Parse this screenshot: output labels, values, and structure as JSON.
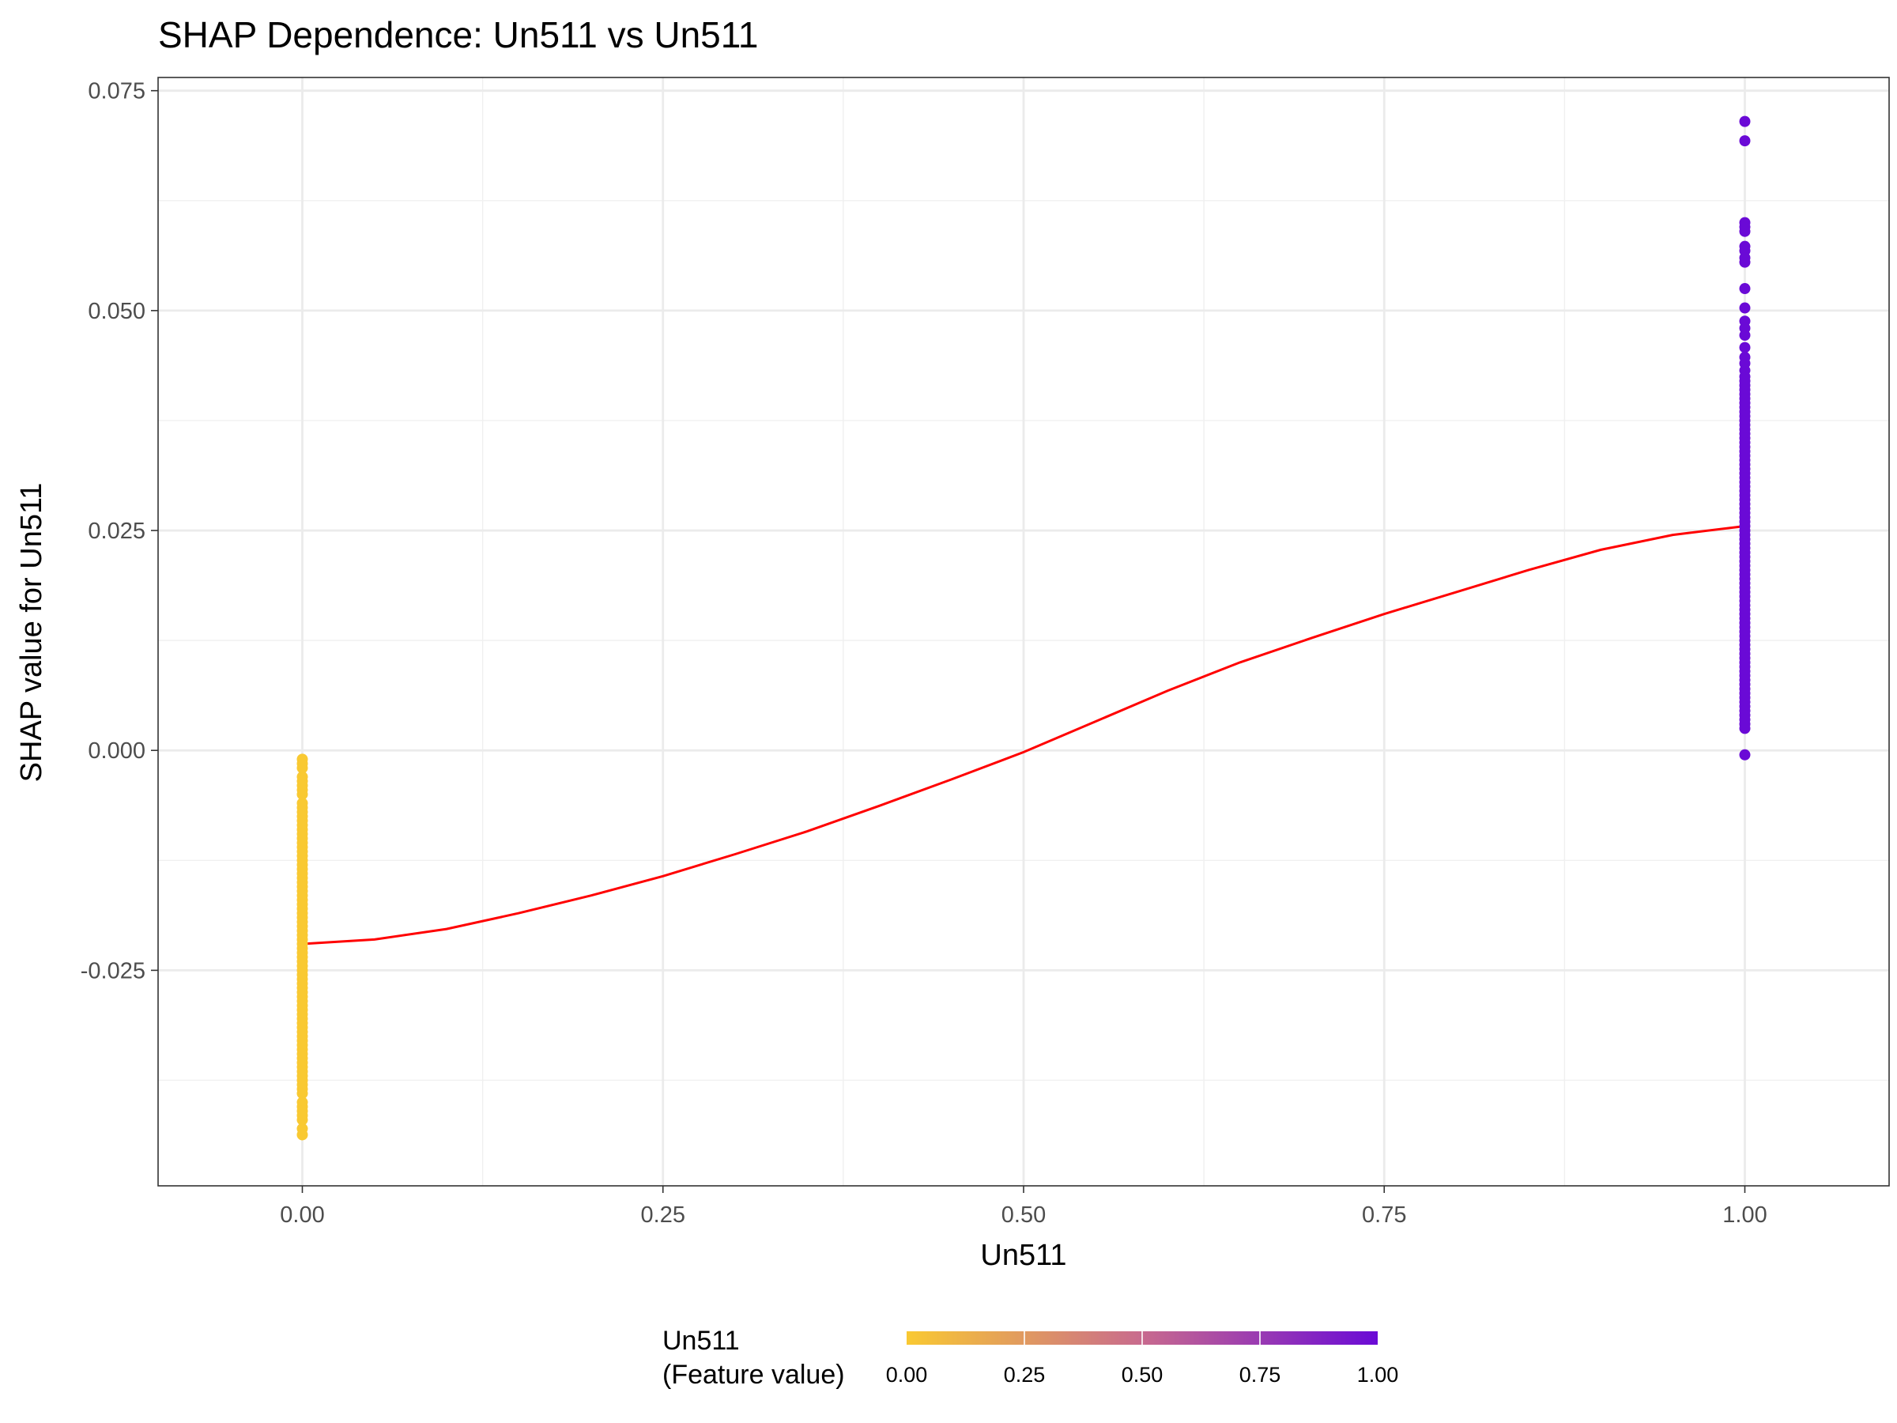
{
  "chart_data": {
    "type": "scatter",
    "title": "SHAP Dependence: Un511 vs Un511",
    "xlabel": "Un511",
    "ylabel": "SHAP value for Un511",
    "xlim": [
      -0.1,
      1.1
    ],
    "ylim": [
      -0.0495,
      0.0765
    ],
    "x_ticks": [
      0.0,
      0.25,
      0.5,
      0.75,
      1.0
    ],
    "x_tick_labels": [
      "0.00",
      "0.25",
      "0.50",
      "0.75",
      "1.00"
    ],
    "y_ticks": [
      -0.025,
      0.0,
      0.025,
      0.05,
      0.075
    ],
    "y_tick_labels": [
      "-0.025",
      "0.000",
      "0.025",
      "0.050",
      "0.075"
    ],
    "grid": true,
    "color_scale": {
      "title_line1": "Un511",
      "title_line2": "(Feature value)",
      "low_color": "#F9C932",
      "mid_color": "#C86A8E",
      "high_color": "#6A0AD6",
      "ticks": [
        "0.00",
        "0.25",
        "0.50",
        "0.75",
        "1.00"
      ],
      "position": "bottom"
    },
    "series": [
      {
        "color_value": 0,
        "x": 0,
        "y": [
          -0.001,
          -0.0015,
          -0.002,
          -0.003,
          -0.0035,
          -0.004,
          -0.0045,
          -0.005,
          -0.006,
          -0.0065,
          -0.007,
          -0.0075,
          -0.008,
          -0.0085,
          -0.009,
          -0.0095,
          -0.01,
          -0.0105,
          -0.011,
          -0.0115,
          -0.012,
          -0.0125,
          -0.013,
          -0.0135,
          -0.014,
          -0.0145,
          -0.015,
          -0.0155,
          -0.016,
          -0.0165,
          -0.017,
          -0.0175,
          -0.018,
          -0.0185,
          -0.019,
          -0.0195,
          -0.02,
          -0.0205,
          -0.021,
          -0.0215,
          -0.022,
          -0.0225,
          -0.023,
          -0.0235,
          -0.024,
          -0.0245,
          -0.025,
          -0.0255,
          -0.026,
          -0.0265,
          -0.027,
          -0.0275,
          -0.028,
          -0.0285,
          -0.029,
          -0.0295,
          -0.03,
          -0.0305,
          -0.031,
          -0.0315,
          -0.032,
          -0.0325,
          -0.033,
          -0.0335,
          -0.034,
          -0.0345,
          -0.035,
          -0.0355,
          -0.036,
          -0.0365,
          -0.037,
          -0.0375,
          -0.038,
          -0.0385,
          -0.039,
          -0.04,
          -0.0405,
          -0.041,
          -0.0415,
          -0.042,
          -0.043,
          -0.0437
        ]
      },
      {
        "color_value": 1,
        "x": 1,
        "y": [
          0.0715,
          0.0693,
          0.06,
          0.0595,
          0.059,
          0.0573,
          0.0568,
          0.056,
          0.0555,
          0.0525,
          0.0503,
          0.0488,
          0.048,
          0.0472,
          0.0458,
          0.0447,
          0.044,
          0.0432,
          0.0425,
          0.042,
          0.0415,
          0.041,
          0.0405,
          0.04,
          0.0395,
          0.039,
          0.0385,
          0.038,
          0.0375,
          0.037,
          0.0365,
          0.036,
          0.0355,
          0.035,
          0.0345,
          0.034,
          0.0335,
          0.033,
          0.0325,
          0.032,
          0.0315,
          0.031,
          0.0305,
          0.03,
          0.0295,
          0.029,
          0.0285,
          0.028,
          0.0275,
          0.027,
          0.0265,
          0.026,
          0.0255,
          0.025,
          0.0245,
          0.024,
          0.0235,
          0.023,
          0.0225,
          0.022,
          0.0215,
          0.021,
          0.0205,
          0.02,
          0.0195,
          0.019,
          0.0185,
          0.018,
          0.0175,
          0.017,
          0.0165,
          0.016,
          0.0155,
          0.015,
          0.0145,
          0.014,
          0.0135,
          0.013,
          0.0125,
          0.012,
          0.0115,
          0.011,
          0.0105,
          0.01,
          0.0095,
          0.009,
          0.0085,
          0.008,
          0.0075,
          0.007,
          0.0065,
          0.006,
          0.0055,
          0.005,
          0.0045,
          0.004,
          0.0035,
          0.003,
          0.0025,
          -0.0005
        ]
      }
    ],
    "trend_line": {
      "color": "#FF0000",
      "x": [
        0.0,
        0.05,
        0.1,
        0.15,
        0.2,
        0.25,
        0.3,
        0.35,
        0.4,
        0.45,
        0.5,
        0.55,
        0.6,
        0.65,
        0.7,
        0.75,
        0.8,
        0.85,
        0.9,
        0.95,
        1.0
      ],
      "y": [
        -0.022,
        -0.0215,
        -0.0203,
        -0.0185,
        -0.0165,
        -0.0143,
        -0.0118,
        -0.0092,
        -0.0063,
        -0.0033,
        -0.0002,
        0.0033,
        0.0068,
        0.01,
        0.0128,
        0.0155,
        0.018,
        0.0205,
        0.0228,
        0.0245,
        0.0255
      ]
    }
  }
}
